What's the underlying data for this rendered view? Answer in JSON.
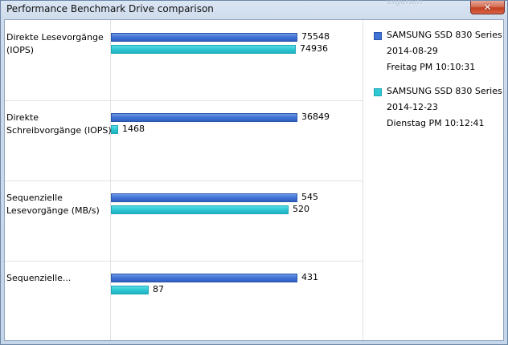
{
  "window": {
    "title": "Performance Benchmark Drive comparison",
    "background_text": "eigenen",
    "close_glyph": "✕"
  },
  "chart_data": {
    "type": "bar",
    "orientation": "horizontal",
    "categories": [
      "Direkte Lesevorgänge (IOPS)",
      "Direkte Schreibvorgänge (IOPS)",
      "Sequenzielle Lesevorgänge (MB/s)",
      "Sequenzielle..."
    ],
    "series": [
      {
        "name": "SAMSUNG SSD 830 Series",
        "date": "2014-08-29",
        "time": "Freitag PM 10:10:31",
        "color": "#3f72d4",
        "values": [
          75548,
          36849,
          545,
          431
        ]
      },
      {
        "name": "SAMSUNG SSD 830 Series",
        "date": "2014-12-23",
        "time": "Dienstag PM 10:12:41",
        "color": "#2ec7d4",
        "values": [
          74936,
          1468,
          520,
          87
        ]
      }
    ],
    "legend_position": "right",
    "grid": false
  }
}
